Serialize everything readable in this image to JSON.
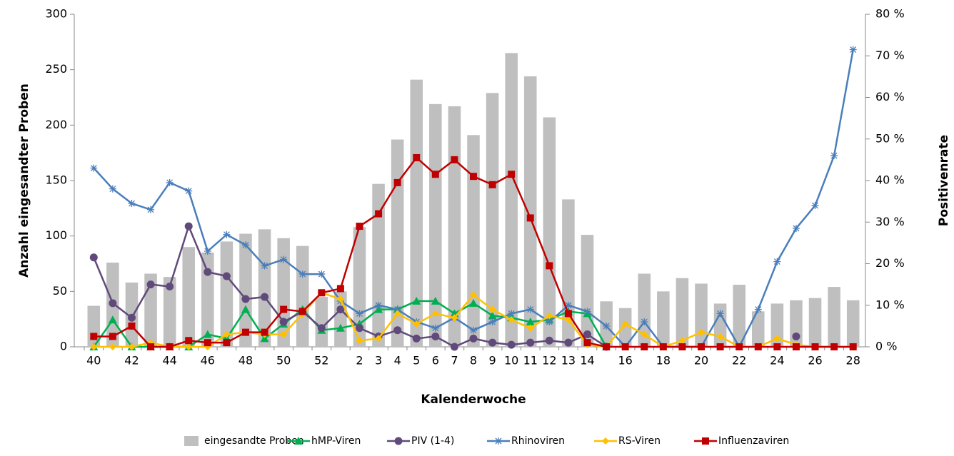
{
  "chart_data": {
    "type": "combo",
    "x_label": "Kalenderwoche",
    "y_label": "Anzahl eingesandter Proben",
    "y2_label": "Positivenrate",
    "categories": [
      "40",
      null,
      "42",
      null,
      "44",
      null,
      "46",
      null,
      "48",
      null,
      "50",
      null,
      "52",
      null,
      "2",
      "3",
      "4",
      "5",
      "6",
      "7",
      "8",
      "9",
      "10",
      "11",
      "12",
      "13",
      "14",
      null,
      "16",
      null,
      "18",
      null,
      "20",
      null,
      "22",
      null,
      "24",
      null,
      "26",
      null,
      "28"
    ],
    "ylim": [
      0,
      300
    ],
    "yticks": [
      0,
      50,
      100,
      150,
      200,
      250,
      300
    ],
    "y2lim": [
      0,
      80
    ],
    "y2ticks": [
      {
        "value": 0,
        "label": "0 %"
      },
      {
        "value": 10,
        "label": "10 %"
      },
      {
        "value": 20,
        "label": "20 %"
      },
      {
        "value": 30,
        "label": "30 %"
      },
      {
        "value": 40,
        "label": "40 %"
      },
      {
        "value": 50,
        "label": "50 %"
      },
      {
        "value": 60,
        "label": "60 %"
      },
      {
        "value": 70,
        "label": "70 %"
      },
      {
        "value": 80,
        "label": "80 %"
      }
    ],
    "series": [
      {
        "name": "eingesandte Proben",
        "type": "bar",
        "color": "#bfbfbf",
        "values": [
          37,
          76,
          58,
          66,
          63,
          90,
          85,
          95,
          102,
          106,
          98,
          91,
          45,
          50,
          108,
          147,
          187,
          241,
          219,
          217,
          191,
          229,
          265,
          244,
          207,
          133,
          101,
          41,
          35,
          66,
          50,
          62,
          57,
          39,
          56,
          32,
          39,
          42,
          44,
          54,
          42
        ]
      },
      {
        "name": "hMP-Viren",
        "type": "line",
        "marker": "triangle",
        "axis": "y2",
        "color": "#00b050",
        "values": [
          0,
          6.5,
          0,
          0,
          0,
          0,
          3,
          2,
          9,
          2,
          5.5,
          9,
          4,
          4.5,
          5.5,
          9,
          9,
          11,
          11,
          8,
          10.5,
          7.5,
          7,
          6,
          6.5,
          8.5,
          8,
          0,
          null,
          null,
          null,
          null,
          null,
          null,
          null,
          null,
          null,
          null,
          null,
          null,
          null
        ]
      },
      {
        "name": "PIV (1-4)",
        "type": "line",
        "marker": "circle",
        "axis": "y2",
        "color": "#604a7b",
        "values": [
          21.5,
          10.5,
          7,
          15,
          14.5,
          29,
          18,
          17,
          11.5,
          12,
          6,
          8.5,
          4.5,
          9,
          4.5,
          2.5,
          4,
          2,
          2.5,
          0,
          2,
          1,
          0.5,
          1,
          1.5,
          1,
          3,
          0,
          null,
          null,
          null,
          null,
          null,
          null,
          null,
          null,
          null,
          2.5,
          null,
          null,
          null
        ]
      },
      {
        "name": "Rhinoviren",
        "type": "line",
        "marker": "star",
        "axis": "y2",
        "color": "#4a7ebb",
        "values": [
          43,
          38,
          34.5,
          33,
          39.5,
          37.5,
          23,
          27,
          24.5,
          19.5,
          21,
          17.5,
          17.5,
          11,
          8,
          10,
          9,
          6,
          4.5,
          7,
          4,
          6,
          8,
          9,
          6,
          10,
          8.5,
          5,
          0,
          6,
          0,
          0,
          0,
          8,
          0,
          9,
          20.5,
          28.5,
          34,
          46,
          71.5
        ]
      },
      {
        "name": "RS-Viren",
        "type": "line",
        "marker": "diamond",
        "axis": "y2",
        "color": "#ffc000",
        "values": [
          0,
          0,
          0,
          1,
          0,
          0,
          0,
          3,
          3.5,
          3,
          3,
          8,
          13,
          11.5,
          1.5,
          2,
          8,
          5.5,
          8,
          7,
          12.5,
          9,
          6.5,
          4.5,
          7.5,
          6.5,
          0.5,
          0,
          5.5,
          3,
          0,
          1.5,
          3.5,
          2.5,
          0,
          0,
          2,
          0.5,
          0,
          0,
          0
        ]
      },
      {
        "name": "Influenzaviren",
        "type": "line",
        "marker": "square",
        "axis": "y2",
        "color": "#c00000",
        "values": [
          2.5,
          2.5,
          5,
          0,
          0,
          1.5,
          1,
          1,
          3.5,
          3.5,
          9,
          8.5,
          13,
          14,
          29,
          32,
          39.5,
          45.5,
          41.5,
          45,
          41,
          39,
          41.5,
          31,
          19.5,
          8,
          1,
          0,
          0,
          0,
          0,
          0,
          0,
          0,
          0,
          0,
          0,
          0,
          0,
          0,
          0
        ]
      }
    ]
  }
}
